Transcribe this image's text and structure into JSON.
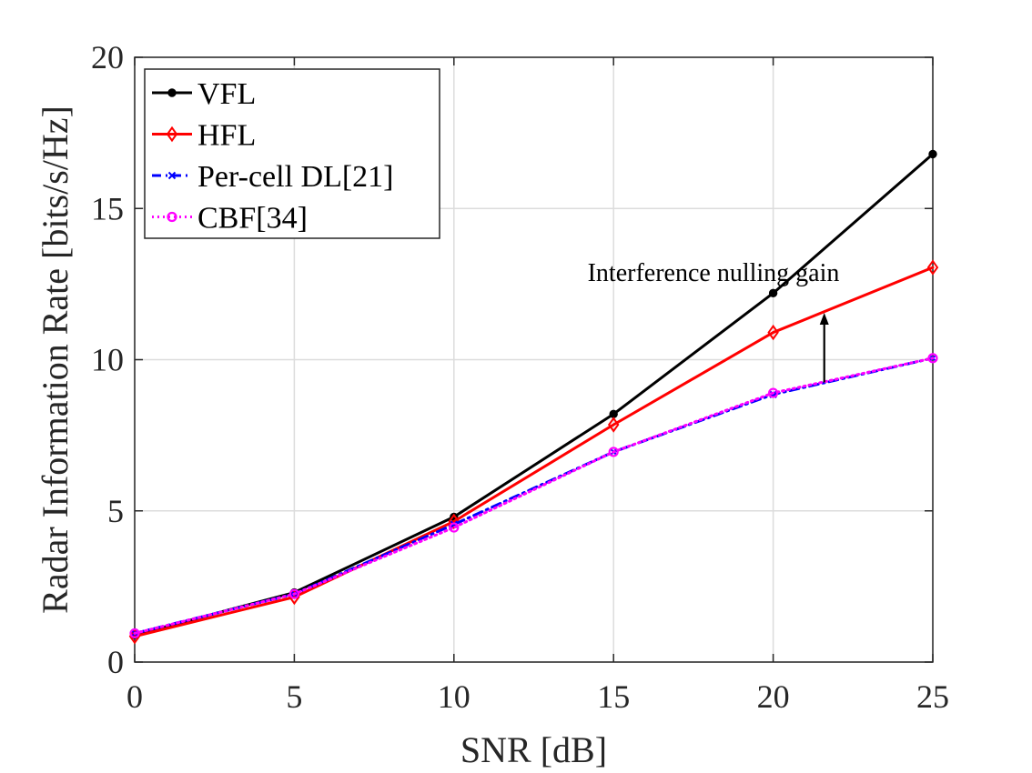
{
  "chart_data": {
    "type": "line",
    "title": "",
    "xlabel": "SNR [dB]",
    "ylabel": "Radar Information Rate [bits/s/Hz]",
    "xlim": [
      0,
      25
    ],
    "ylim": [
      0,
      20
    ],
    "xticks": [
      0,
      5,
      10,
      15,
      20,
      25
    ],
    "yticks": [
      0,
      5,
      10,
      15,
      20
    ],
    "grid": true,
    "legend_position": "top-left",
    "x": [
      0,
      5,
      10,
      15,
      20,
      25
    ],
    "series": [
      {
        "name": "VFL",
        "color": "#000000",
        "marker": "dot",
        "dash": "solid",
        "values": [
          0.9,
          2.3,
          4.8,
          8.2,
          12.2,
          16.8
        ]
      },
      {
        "name": "HFL",
        "color": "#ff0000",
        "marker": "diamond",
        "dash": "solid",
        "values": [
          0.85,
          2.15,
          4.65,
          7.85,
          10.9,
          13.05
        ]
      },
      {
        "name": "Per-cell DL[21]",
        "color": "#0000ff",
        "marker": "x",
        "dash": "dashdot",
        "values": [
          0.95,
          2.25,
          4.55,
          6.95,
          8.85,
          10.05
        ]
      },
      {
        "name": "CBF[34]",
        "color": "#ff00ff",
        "marker": "circle",
        "dash": "dotted",
        "values": [
          0.95,
          2.25,
          4.45,
          6.95,
          8.9,
          10.05
        ]
      }
    ],
    "annotations": [
      {
        "text": "Interference nulling gain",
        "arrow_x": 21.6,
        "arrow_from_y": 9.25,
        "arrow_to_y": 11.55
      }
    ]
  }
}
